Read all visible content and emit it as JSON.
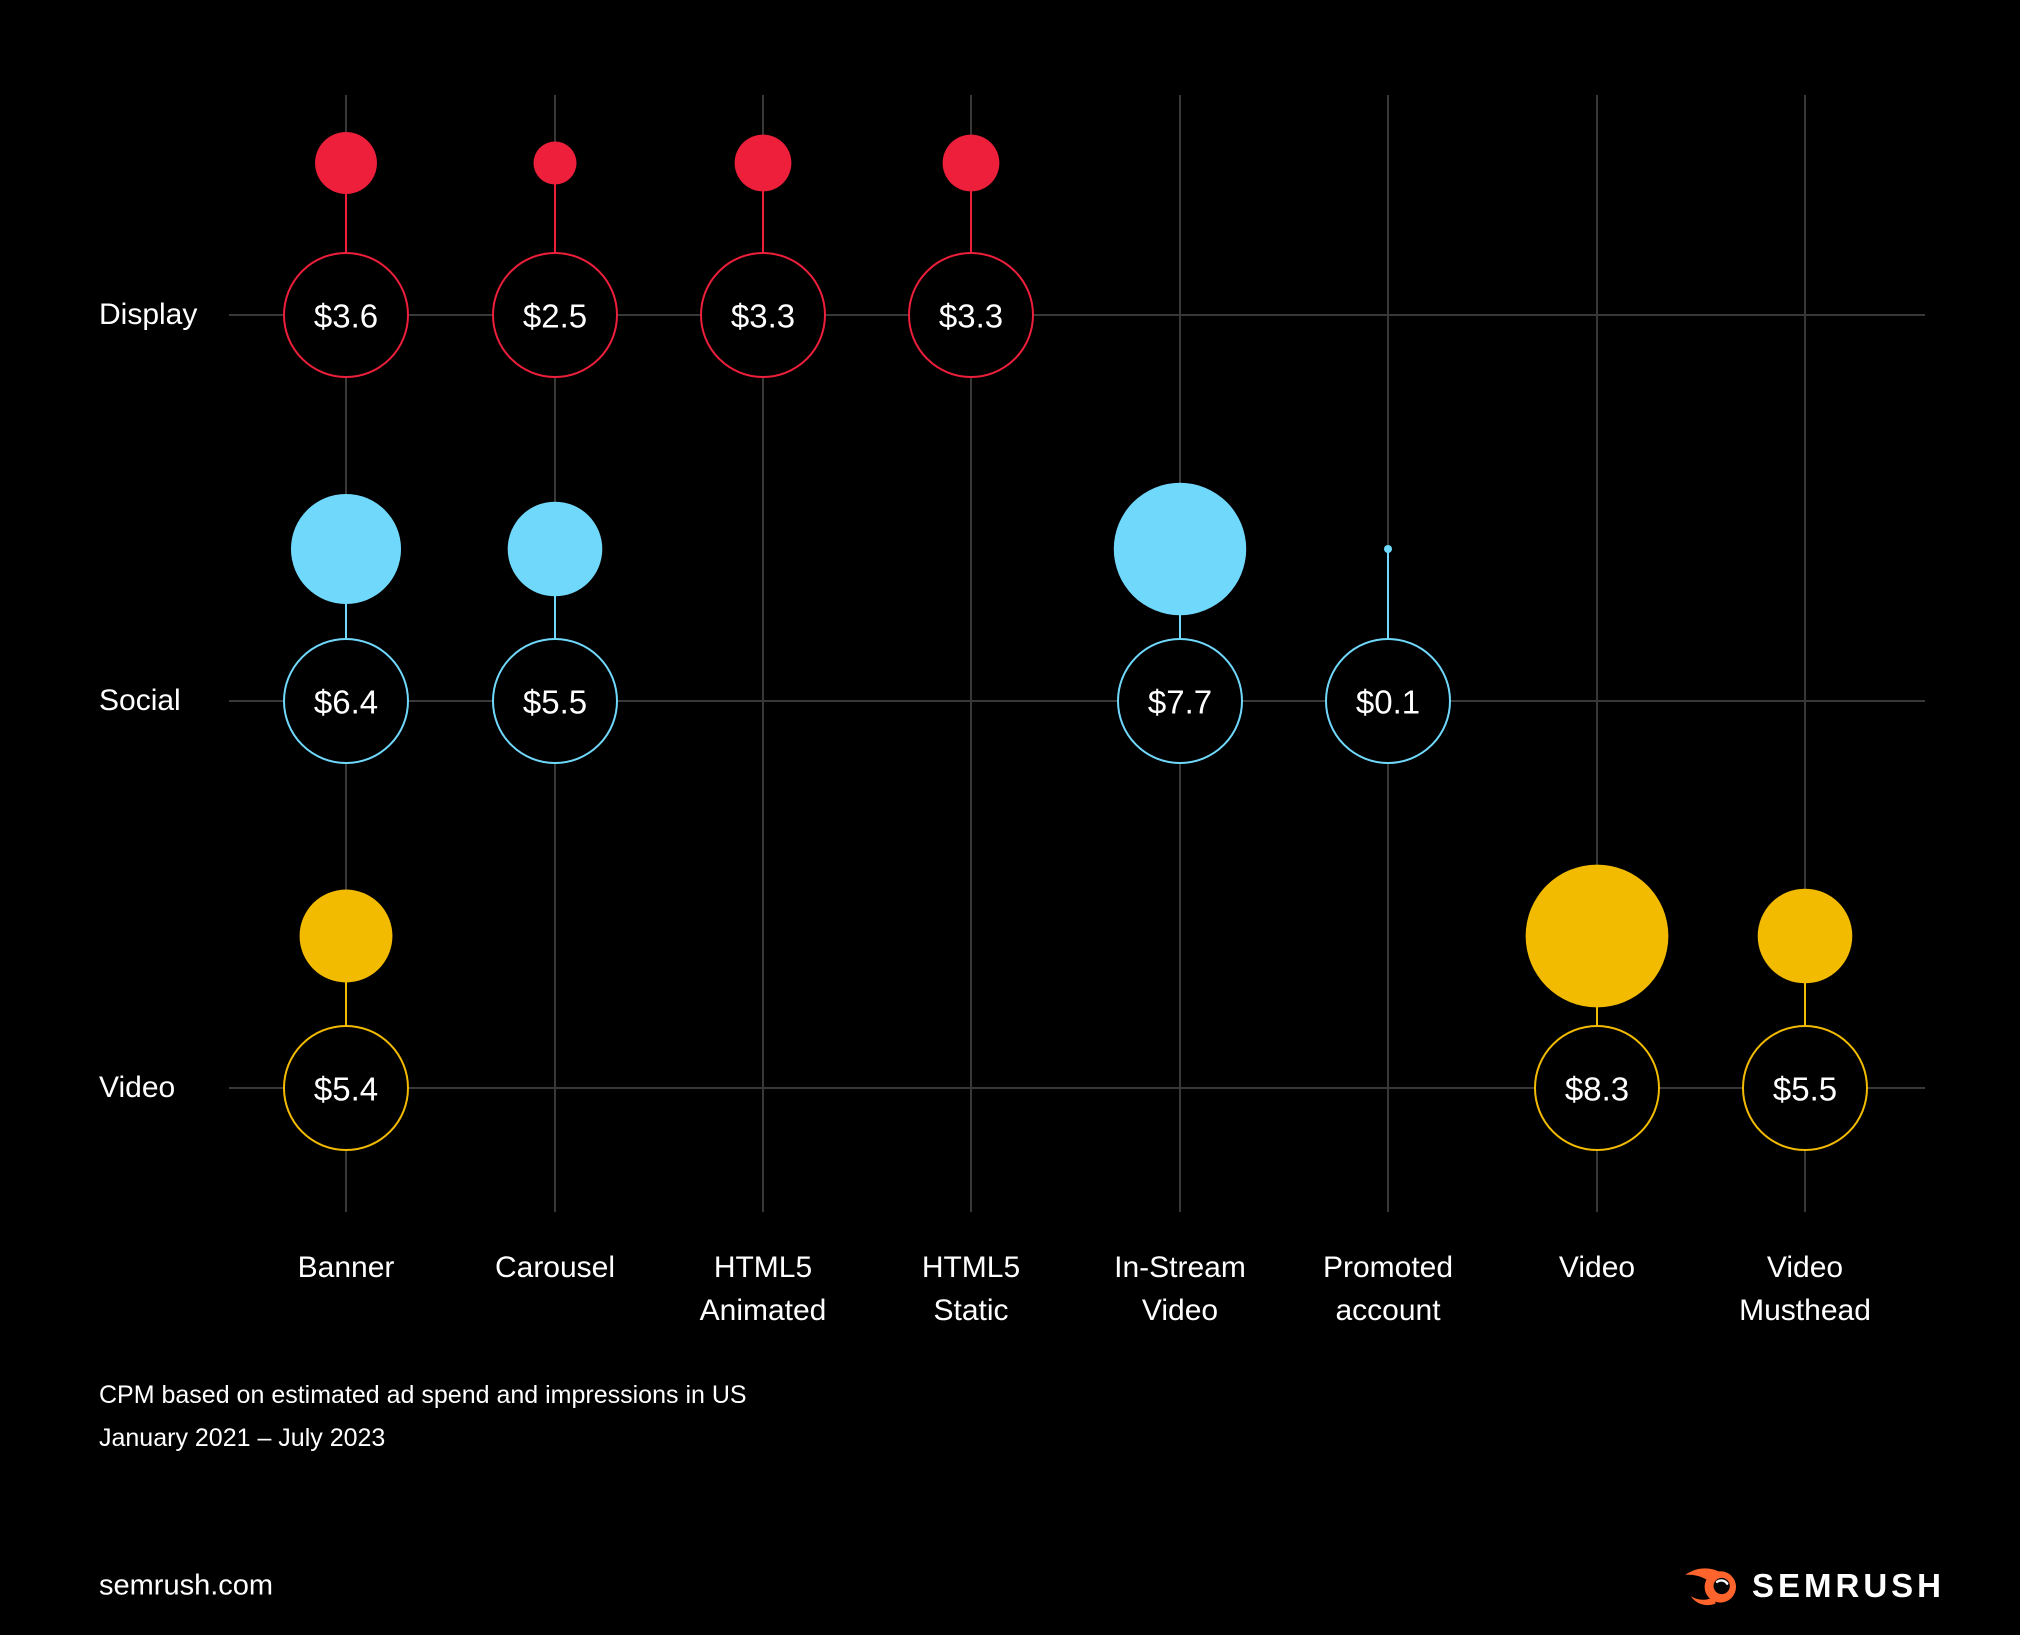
{
  "chart_data": {
    "type": "bubble",
    "title": "",
    "categories": [
      "Banner",
      "Carousel",
      "HTML5 Animated",
      "HTML5 Static",
      "In-Stream Video",
      "Promoted account",
      "Video",
      "Video Musthead"
    ],
    "category_label_lines": [
      [
        "Banner"
      ],
      [
        "Carousel"
      ],
      [
        "HTML5",
        "Animated"
      ],
      [
        "HTML5",
        "Static"
      ],
      [
        "In-Stream",
        "Video"
      ],
      [
        "Promoted",
        "account"
      ],
      [
        "Video"
      ],
      [
        "Video",
        "Musthead"
      ]
    ],
    "row_categories": [
      "Display",
      "Social",
      "Video"
    ],
    "series": [
      {
        "name": "Display",
        "color": "#ED1F3B",
        "values": [
          3.6,
          2.5,
          3.3,
          3.3,
          null,
          null,
          null,
          null
        ]
      },
      {
        "name": "Social",
        "color": "#70D8FB",
        "values": [
          6.4,
          5.5,
          null,
          null,
          7.7,
          0.1,
          null,
          null
        ]
      },
      {
        "name": "Video",
        "color": "#F2BB00",
        "values": [
          5.4,
          null,
          null,
          null,
          null,
          null,
          8.3,
          5.5
        ]
      }
    ],
    "value_prefix": "$",
    "value_labels": [
      [
        "$3.6",
        "$2.5",
        "$3.3",
        "$3.3",
        "",
        "",
        "",
        ""
      ],
      [
        "$6.4",
        "$5.5",
        "",
        "",
        "$7.7",
        "$0.1",
        "",
        ""
      ],
      [
        "$5.4",
        "",
        "",
        "",
        "",
        "",
        "$8.3",
        "$5.5"
      ]
    ],
    "legend_position": "none",
    "grid": true,
    "notes": [
      "CPM based on estimated ad spend and impressions in US",
      "January 2021 – July 2023"
    ]
  },
  "footer": {
    "source": "semrush.com",
    "brand": "SEMRUSH"
  },
  "colors": {
    "background": "#000000",
    "grid": "#383838",
    "text": "#FFFFFF",
    "display": "#ED1F3B",
    "social": "#70D8FB",
    "video": "#F2BB00",
    "logo_orange": "#FF642D"
  }
}
